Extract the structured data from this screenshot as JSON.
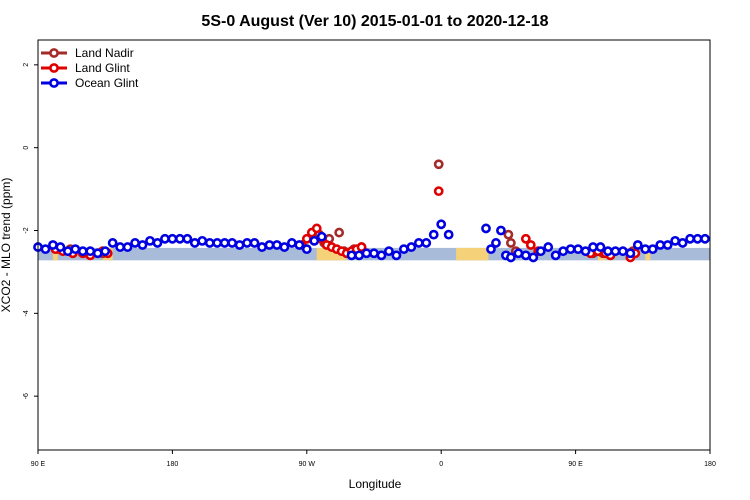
{
  "chart_data": {
    "type": "scatter",
    "title": "5S-0 August (Ver 10)   2015-01-01 to 2020-12-18",
    "xlabel": "Longitude",
    "ylabel": "XCO2 - MLO trend (ppm)",
    "xlim": [
      -90,
      180
    ],
    "ylim": [
      -7.3,
      2.6
    ],
    "x_ticks": [
      {
        "value": -90,
        "label": "90 E"
      },
      {
        "value": -36,
        "label": "180"
      },
      {
        "value": 18,
        "label": "90 W"
      },
      {
        "value": 72,
        "label": "0"
      },
      {
        "value": 126,
        "label": "90 E"
      },
      {
        "value": 180,
        "label": "180"
      }
    ],
    "y_ticks": [
      {
        "value": 2,
        "label": "2"
      },
      {
        "value": 0,
        "label": "0"
      },
      {
        "value": -2,
        "label": "-2"
      },
      {
        "value": -4,
        "label": "-4"
      },
      {
        "value": -6,
        "label": "-6"
      }
    ],
    "grid": false,
    "legend_position": "top-left",
    "surface_band": {
      "y_range": [
        -2.72,
        -2.42
      ],
      "ocean_color": "#a8bcd9",
      "land_color": "#f5d27a",
      "land_spans": [
        [
          -84,
          -82
        ],
        [
          -64,
          -60
        ],
        [
          22,
          34
        ],
        [
          78,
          91
        ],
        [
          135,
          138
        ],
        [
          154,
          156
        ]
      ]
    },
    "series": [
      {
        "name": "Land Nadir",
        "color": "#a52a2a",
        "x": [
          -82,
          -77,
          -70,
          -64,
          21,
          23,
          25,
          27,
          31,
          33,
          35,
          37,
          40,
          71,
          99,
          100,
          102,
          133,
          135,
          137,
          140,
          149
        ],
        "y": [
          -2.45,
          -2.45,
          -2.55,
          -2.55,
          -2.05,
          -2.1,
          -2.3,
          -2.2,
          -2.05,
          -2.5,
          -2.55,
          -2.45,
          -2.4,
          -0.4,
          -2.1,
          -2.3,
          -2.5,
          -2.55,
          -2.5,
          -2.55,
          -2.55,
          -2.5
        ]
      },
      {
        "name": "Land Glint",
        "color": "#e00000",
        "x": [
          -83,
          -80,
          -76,
          -72,
          -69,
          -64,
          -62,
          16,
          18,
          20,
          22,
          24,
          26,
          28,
          30,
          32,
          34,
          36,
          38,
          40,
          71,
          106,
          108,
          111,
          132,
          135,
          138,
          140,
          148,
          150
        ],
        "y": [
          -2.45,
          -2.5,
          -2.55,
          -2.55,
          -2.6,
          -2.5,
          -2.55,
          -2.35,
          -2.2,
          -2.05,
          -1.95,
          -2.2,
          -2.35,
          -2.4,
          -2.45,
          -2.5,
          -2.55,
          -2.5,
          -2.45,
          -2.4,
          -1.05,
          -2.2,
          -2.35,
          -2.5,
          -2.55,
          -2.5,
          -2.55,
          -2.6,
          -2.65,
          -2.55
        ]
      },
      {
        "name": "Ocean Glint",
        "color": "#0000e0",
        "x": [
          -90,
          -87,
          -84,
          -81,
          -78,
          -75,
          -72,
          -69,
          -66,
          -63,
          -60,
          -57,
          -54,
          -51,
          -48,
          -45,
          -42,
          -39,
          -36,
          -33,
          -30,
          -27,
          -24,
          -21,
          -18,
          -15,
          -12,
          -9,
          -6,
          -3,
          0,
          3,
          6,
          9,
          12,
          15,
          18,
          21,
          24,
          36,
          39,
          42,
          45,
          48,
          51,
          54,
          57,
          60,
          63,
          66,
          69,
          72,
          75,
          90,
          92,
          94,
          96,
          98,
          100,
          103,
          106,
          109,
          112,
          115,
          118,
          121,
          124,
          127,
          130,
          133,
          136,
          139,
          142,
          145,
          148,
          151,
          154,
          157,
          160,
          163,
          166,
          169,
          172,
          175,
          178
        ],
        "y": [
          -2.4,
          -2.45,
          -2.35,
          -2.4,
          -2.5,
          -2.45,
          -2.5,
          -2.5,
          -2.55,
          -2.5,
          -2.3,
          -2.4,
          -2.4,
          -2.3,
          -2.35,
          -2.25,
          -2.3,
          -2.2,
          -2.2,
          -2.2,
          -2.2,
          -2.3,
          -2.25,
          -2.3,
          -2.3,
          -2.3,
          -2.3,
          -2.35,
          -2.3,
          -2.3,
          -2.4,
          -2.35,
          -2.35,
          -2.4,
          -2.3,
          -2.35,
          -2.45,
          -2.25,
          -2.15,
          -2.6,
          -2.6,
          -2.55,
          -2.55,
          -2.6,
          -2.5,
          -2.6,
          -2.45,
          -2.4,
          -2.3,
          -2.3,
          -2.1,
          -1.85,
          -2.1,
          -1.95,
          -2.45,
          -2.3,
          -2.0,
          -2.6,
          -2.65,
          -2.55,
          -2.6,
          -2.65,
          -2.5,
          -2.4,
          -2.6,
          -2.5,
          -2.45,
          -2.45,
          -2.5,
          -2.4,
          -2.4,
          -2.5,
          -2.5,
          -2.5,
          -2.55,
          -2.35,
          -2.45,
          -2.45,
          -2.35,
          -2.35,
          -2.25,
          -2.3,
          -2.2,
          -2.2,
          -2.2
        ]
      }
    ]
  }
}
